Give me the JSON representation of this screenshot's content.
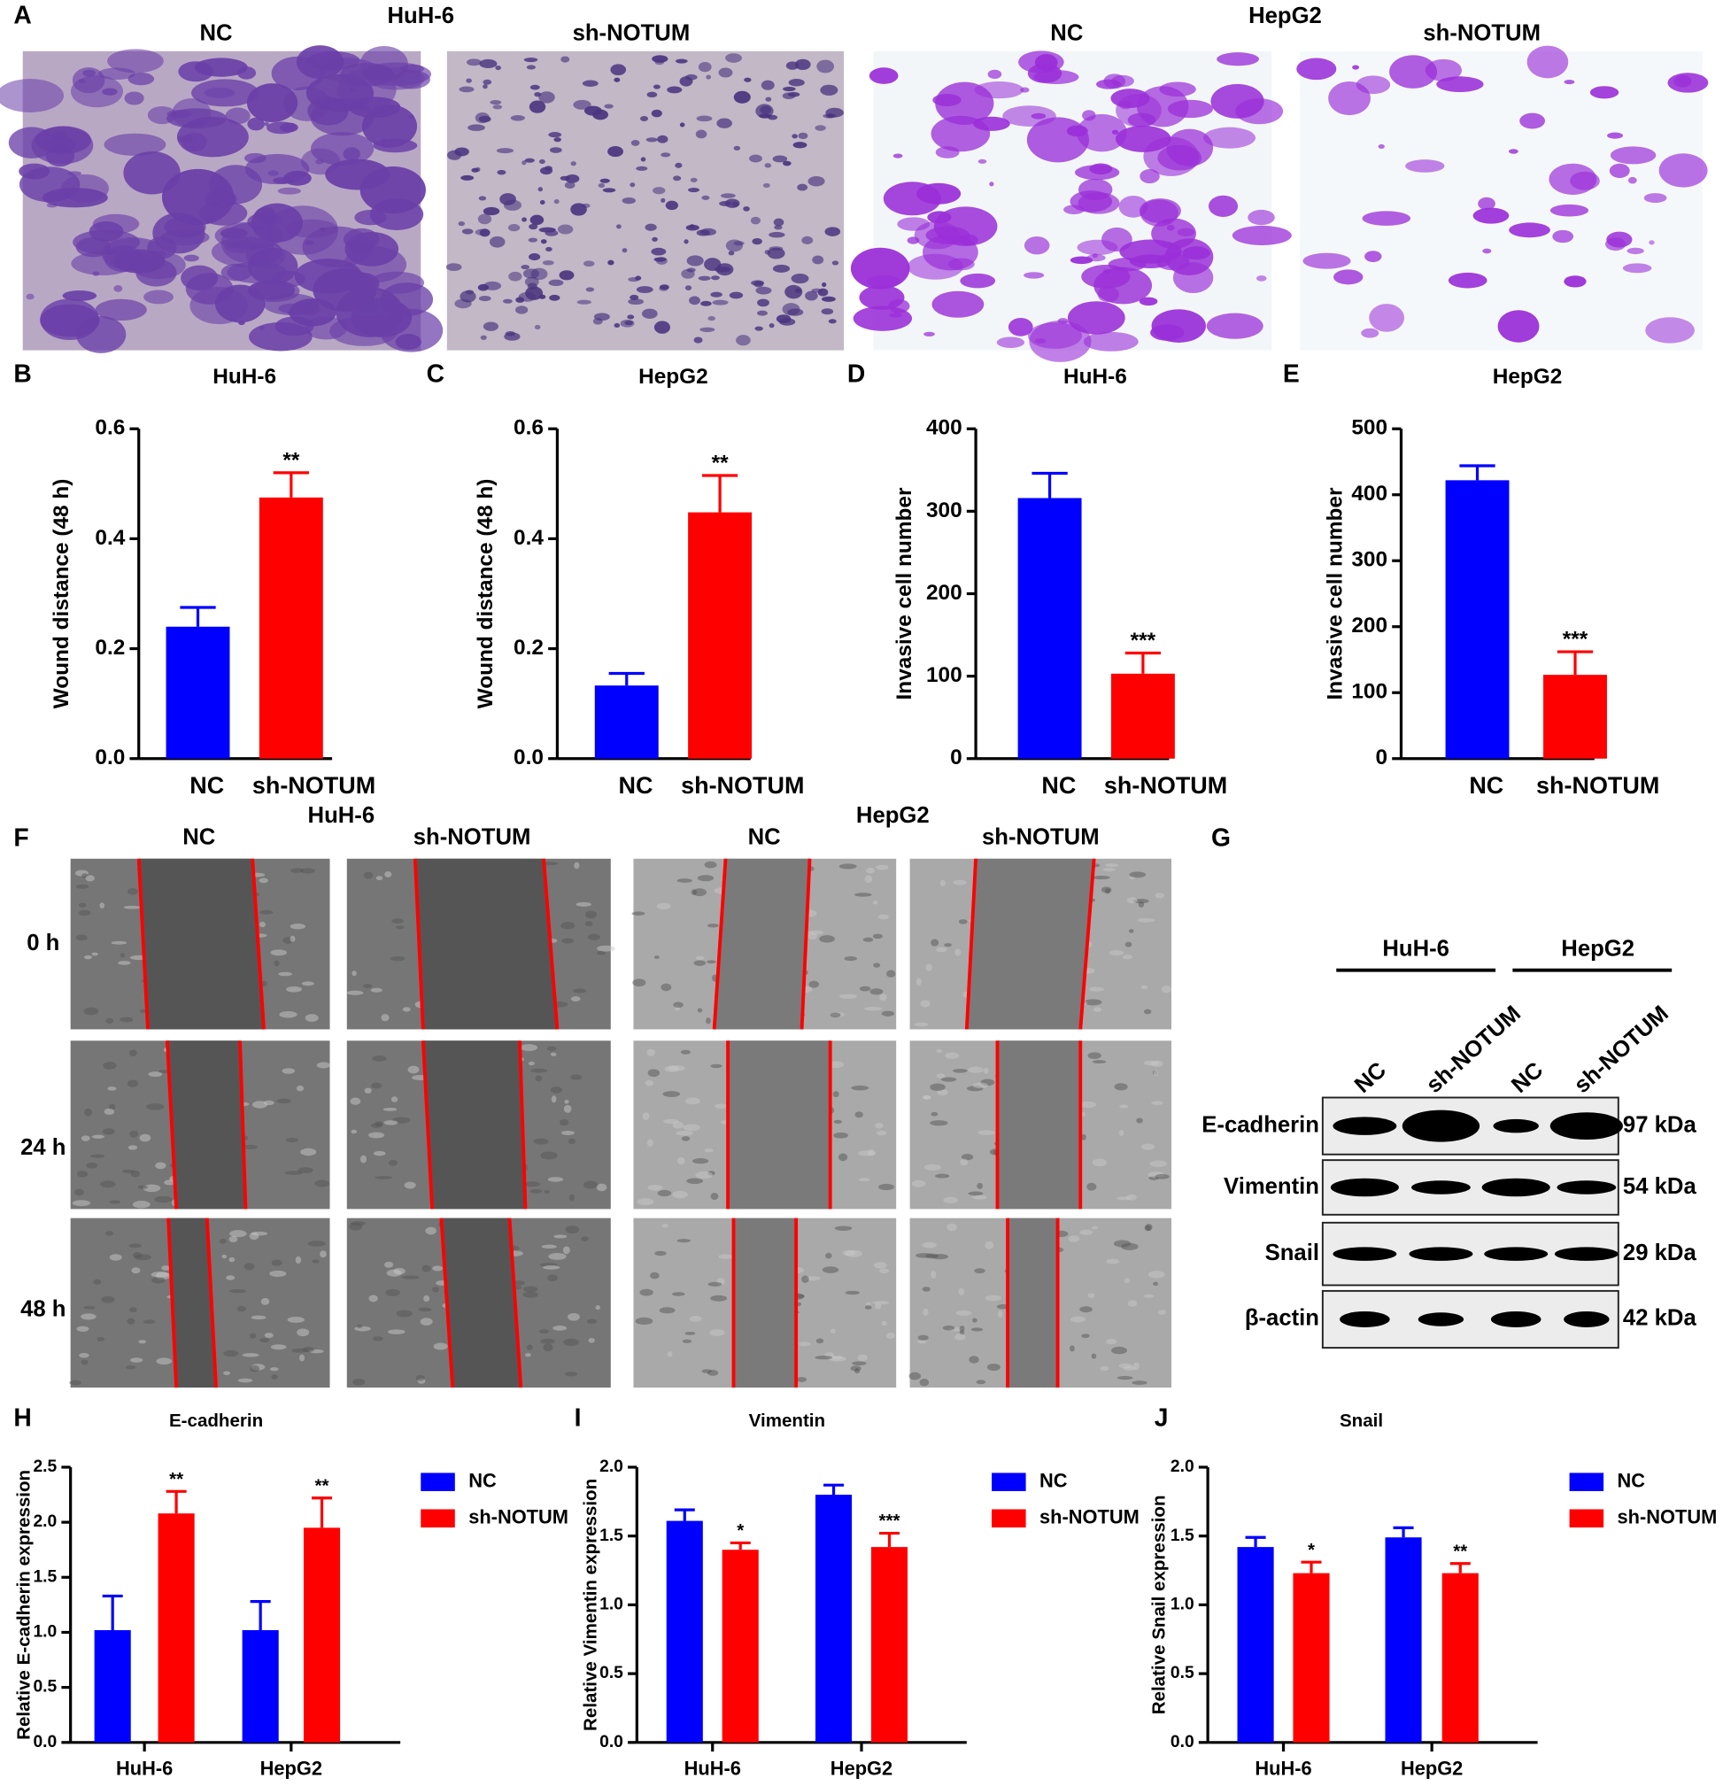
{
  "panel_a": {
    "label": "A",
    "cell_lines": [
      "HuH-6",
      "HepG2"
    ],
    "columns": [
      "NC",
      "sh-NOTUM",
      "NC",
      "sh-NOTUM"
    ]
  },
  "chart_data": [
    {
      "type": "bar",
      "panel": "B",
      "title": "HuH-6",
      "y_label": "Wound distance (48 h)",
      "categories": [
        "NC",
        "sh-NOTUM"
      ],
      "values": [
        0.24,
        0.475
      ],
      "errors": [
        0.035,
        0.045
      ],
      "colors": [
        "#0000ff",
        "#ff0000"
      ],
      "significance": [
        null,
        "**"
      ],
      "ylim": [
        0,
        0.6
      ],
      "yticks": [
        {
          "value": 0,
          "label": "0.0"
        },
        0.2,
        0.4,
        0.6
      ]
    },
    {
      "type": "bar",
      "panel": "C",
      "title": "HepG2",
      "y_label": "Wound distance (48 h)",
      "categories": [
        "NC",
        "sh-NOTUM"
      ],
      "values": [
        0.133,
        0.448
      ],
      "errors": [
        0.022,
        0.067
      ],
      "colors": [
        "#0000ff",
        "#ff0000"
      ],
      "significance": [
        null,
        "**"
      ],
      "ylim": [
        0,
        0.6
      ],
      "yticks": [
        {
          "value": 0,
          "label": "0.0"
        },
        0.2,
        0.4,
        0.6
      ]
    },
    {
      "type": "bar",
      "panel": "D",
      "title": "HuH-6",
      "y_label": "Invasive cell number",
      "categories": [
        "NC",
        "sh-NOTUM"
      ],
      "values": [
        316,
        103
      ],
      "errors": [
        30,
        25
      ],
      "colors": [
        "#0000ff",
        "#ff0000"
      ],
      "significance": [
        null,
        "***"
      ],
      "ylim": [
        0,
        400
      ],
      "yticks": [
        0,
        100,
        200,
        300,
        400
      ]
    },
    {
      "type": "bar",
      "panel": "E",
      "title": "HepG2",
      "y_label": "Invasive cell number",
      "categories": [
        "NC",
        "sh-NOTUM"
      ],
      "values": [
        422,
        127
      ],
      "errors": [
        22,
        35
      ],
      "colors": [
        "#0000ff",
        "#ff0000"
      ],
      "significance": [
        null,
        "***"
      ],
      "ylim": [
        0,
        500
      ],
      "yticks": [
        0,
        100,
        200,
        300,
        400,
        500
      ]
    },
    {
      "type": "grouped_bar",
      "panel": "H",
      "title": "E-cadherin",
      "y_label": "Relative E-cadherin expression",
      "categories": [
        "HuH-6",
        "HepG2"
      ],
      "series": [
        {
          "name": "NC",
          "color": "#0000ff",
          "values": [
            1.02,
            1.02
          ],
          "errors": [
            0.31,
            0.26
          ]
        },
        {
          "name": "sh-NOTUM",
          "color": "#ff0000",
          "values": [
            2.08,
            1.95
          ],
          "errors": [
            0.2,
            0.27
          ],
          "significance": [
            "**",
            "**"
          ]
        }
      ],
      "legend": "right",
      "ylim": [
        0,
        2.5
      ],
      "yticks": [
        {
          "value": 0,
          "label": "0.0"
        },
        0.5,
        {
          "value": 1,
          "label": "1.0"
        },
        1.5,
        {
          "value": 2,
          "label": "2.0"
        },
        2.5
      ]
    },
    {
      "type": "grouped_bar",
      "panel": "I",
      "title": "Vimentin",
      "y_label": "Relative Vimentin expression",
      "categories": [
        "HuH-6",
        "HepG2"
      ],
      "series": [
        {
          "name": "NC",
          "color": "#0000ff",
          "values": [
            1.61,
            1.8
          ],
          "errors": [
            0.08,
            0.07
          ]
        },
        {
          "name": "sh-NOTUM",
          "color": "#ff0000",
          "values": [
            1.4,
            1.42
          ],
          "errors": [
            0.05,
            0.1
          ],
          "significance": [
            "*",
            "***"
          ]
        }
      ],
      "legend": "right",
      "ylim": [
        0,
        2
      ],
      "yticks": [
        {
          "value": 0,
          "label": "0.0"
        },
        0.5,
        {
          "value": 1,
          "label": "1.0"
        },
        1.5,
        {
          "value": 2,
          "label": "2.0"
        }
      ]
    },
    {
      "type": "grouped_bar",
      "panel": "J",
      "title": "Snail",
      "y_label": "Relative Snail expression",
      "categories": [
        "HuH-6",
        "HepG2"
      ],
      "series": [
        {
          "name": "NC",
          "color": "#0000ff",
          "values": [
            1.42,
            1.49
          ],
          "errors": [
            0.07,
            0.07
          ]
        },
        {
          "name": "sh-NOTUM",
          "color": "#ff0000",
          "values": [
            1.23,
            1.23
          ],
          "errors": [
            0.08,
            0.07
          ],
          "significance": [
            "*",
            "**"
          ]
        }
      ],
      "legend": "right",
      "ylim": [
        0,
        2
      ],
      "yticks": [
        {
          "value": 0,
          "label": "0.0"
        },
        0.5,
        {
          "value": 1,
          "label": "1.0"
        },
        1.5,
        {
          "value": 2,
          "label": "2.0"
        }
      ]
    }
  ],
  "panel_f": {
    "label": "F",
    "cell_lines": [
      "HuH-6",
      "HepG2"
    ],
    "columns": [
      "NC",
      "sh-NOTUM",
      "NC",
      "sh-NOTUM"
    ],
    "rows": [
      "0 h",
      "24 h",
      "48 h"
    ]
  },
  "panel_g": {
    "label": "G",
    "groups": [
      "HuH-6",
      "HepG2"
    ],
    "lanes": [
      "NC",
      "sh-NOTUM",
      "NC",
      "sh-NOTUM"
    ],
    "proteins": [
      "E-cadherin",
      "Vimentin",
      "Snail",
      "β-actin"
    ],
    "sizes": [
      "97 kDa",
      "54 kDa",
      "29 kDa",
      "42 kDa"
    ]
  }
}
